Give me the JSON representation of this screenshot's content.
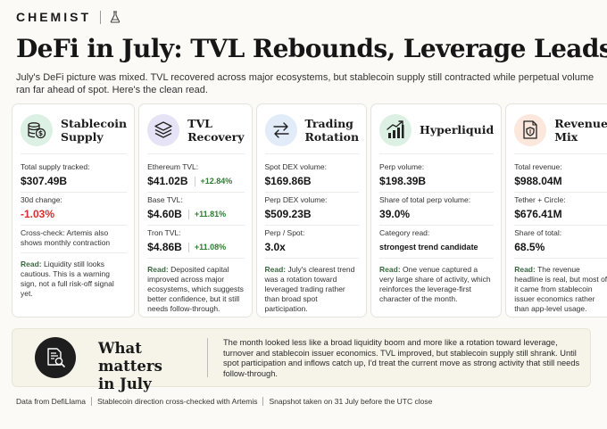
{
  "brand": {
    "name": "CHEMIST",
    "icon": "flask-icon"
  },
  "title": "DeFi in July: TVL Rebounds, Leverage Leads",
  "intro": "July's DeFi picture was mixed. TVL recovered across major ecosystems, but stablecoin supply still contracted while perpetual volume ran far ahead of spot. Here's the clean read.",
  "colors": {
    "positive": "#2e7d32",
    "negative": "#d32f2f",
    "read_label": "#3a6a40"
  },
  "cards": [
    {
      "title_line1": "Stablecoin",
      "title_line2": "Supply",
      "icon": "coins-dollar-icon",
      "icon_bg": "#dcf0e3",
      "s1_label": "Total supply tracked:",
      "s1_value": "$307.49B",
      "s2_label": "30d change:",
      "s2_value": "-1.03%",
      "s3_text": "Cross-check: Artemis also shows monthly contraction",
      "read_label": "Read:",
      "read_text": "Liquidity still looks cautious. This is a warning sign, not a full risk-off signal yet."
    },
    {
      "title_line1": "TVL",
      "title_line2": "Recovery",
      "icon": "layers-icon",
      "icon_bg": "#e5e3f5",
      "s1_label": "Ethereum TVL:",
      "s1_value": "$41.02B",
      "s1_delta": "+12.84%",
      "s2_label": "Base TVL:",
      "s2_value": "$4.60B",
      "s2_delta": "+11.81%",
      "s3_label": "Tron TVL:",
      "s3_value": "$4.86B",
      "s3_delta": "+11.08%",
      "read_label": "Read:",
      "read_text": "Deposited capital improved across major ecosystems, which suggests better confidence, but it still needs follow-through."
    },
    {
      "title_line1": "Trading",
      "title_line2": "Rotation",
      "icon": "swap-arrows-icon",
      "icon_bg": "#e1ecf8",
      "s1_label": "Spot DEX volume:",
      "s1_value": "$169.86B",
      "s2_label": "Perp DEX volume:",
      "s2_value": "$509.23B",
      "s3_label": "Perp / Spot:",
      "s3_value": "3.0x",
      "read_label": "Read:",
      "read_text": "July's clearest trend was a rotation toward leveraged trading rather than broad spot participation."
    },
    {
      "title_line1": "Hyperliquid",
      "title_line2": "",
      "icon": "bar-chart-trend-icon",
      "icon_bg": "#dcf0e3",
      "s1_label": "Perp volume:",
      "s1_value": "$198.39B",
      "s2_label": "Share of total perp volume:",
      "s2_value": "39.0%",
      "s3_label": "Category read:",
      "s3_value": "strongest trend candidate",
      "read_label": "Read:",
      "read_text": "One venue captured a very large share of activity, which reinforces the leverage-first character of the month."
    },
    {
      "title_line1": "Revenue",
      "title_line2": "Mix",
      "icon": "receipt-shield-icon",
      "icon_bg": "#fbe7dc",
      "s1_label": "Total revenue:",
      "s1_value": "$988.04M",
      "s2_label": "Tether + Circle:",
      "s2_value": "$676.41M",
      "s3_label": "Share of total:",
      "s3_value": "68.5%",
      "read_label": "Read:",
      "read_text": "The revenue headline is real, but most of it came from stablecoin issuer economics rather than app-level usage."
    }
  ],
  "matters": {
    "icon": "document-search-icon",
    "title_line1": "What matters",
    "title_line2": "in July",
    "text": "The month looked less like a broad liquidity boom and more like a rotation toward leverage, turnover and stablecoin issuer economics. TVL improved, but stablecoin supply still shrank. Until spot participation and inflows catch up, I'd treat the current move as strong activity that still needs follow-through."
  },
  "footer": {
    "item1": "Data from DefiLlama",
    "item2": "Stablecoin direction cross-checked with Artemis",
    "item3": "Snapshot taken on 31 July before the UTC close"
  }
}
